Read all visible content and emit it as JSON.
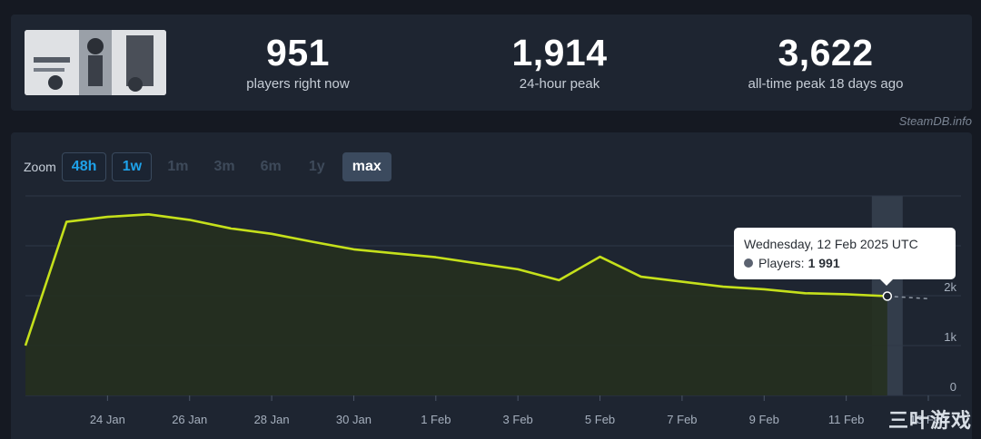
{
  "stats": {
    "thumbnail_icon": "game-capsule-image",
    "current": {
      "value": "951",
      "label": "players right now"
    },
    "peak24": {
      "value": "1,914",
      "label": "24-hour peak"
    },
    "alltime": {
      "value": "3,622",
      "label": "all-time peak 18 days ago"
    }
  },
  "credit": "SteamDB.info",
  "zoom": {
    "label": "Zoom",
    "buttons": [
      {
        "label": "48h",
        "state": "enabled"
      },
      {
        "label": "1w",
        "state": "enabled"
      },
      {
        "label": "1m",
        "state": "disabled"
      },
      {
        "label": "3m",
        "state": "disabled"
      },
      {
        "label": "6m",
        "state": "disabled"
      },
      {
        "label": "1y",
        "state": "disabled"
      },
      {
        "label": "max",
        "state": "active"
      }
    ]
  },
  "tooltip": {
    "date": "Wednesday, 12 Feb 2025 UTC",
    "series_label": "Players:",
    "value": "1 991"
  },
  "watermark": "三叶游戏",
  "colors": {
    "line": "#c5e01b",
    "area": "#25301f",
    "grid": "#2f3847",
    "text_dim": "#a5afbd"
  },
  "chart_data": {
    "type": "area",
    "x": [
      "22 Jan",
      "23 Jan",
      "24 Jan",
      "25 Jan",
      "26 Jan",
      "27 Jan",
      "28 Jan",
      "29 Jan",
      "30 Jan",
      "31 Jan",
      "1 Feb",
      "2 Feb",
      "3 Feb",
      "4 Feb",
      "5 Feb",
      "6 Feb",
      "7 Feb",
      "8 Feb",
      "9 Feb",
      "10 Feb",
      "11 Feb",
      "12 Feb"
    ],
    "y": [
      1000,
      3480,
      3580,
      3630,
      3520,
      3350,
      3240,
      3080,
      2930,
      2850,
      2770,
      2650,
      2530,
      2310,
      2780,
      2380,
      2280,
      2180,
      2130,
      2050,
      2030,
      1991
    ],
    "projected": [
      {
        "x": "12 Feb",
        "y": 1991
      },
      {
        "x": "13 Feb",
        "y": 1940
      }
    ],
    "series": [
      {
        "name": "Players"
      }
    ],
    "xticks": [
      "24 Jan",
      "26 Jan",
      "28 Jan",
      "30 Jan",
      "1 Feb",
      "3 Feb",
      "5 Feb",
      "7 Feb",
      "9 Feb",
      "11 Feb",
      "13 Feb"
    ],
    "yticks": [
      {
        "value": 0,
        "label": "0"
      },
      {
        "value": 1000,
        "label": "1k"
      },
      {
        "value": 2000,
        "label": "2k"
      }
    ],
    "ylim": [
      0,
      4000
    ],
    "xlim": [
      "22 Jan",
      "13 Feb"
    ],
    "highlight": "12 Feb",
    "grid": true
  }
}
